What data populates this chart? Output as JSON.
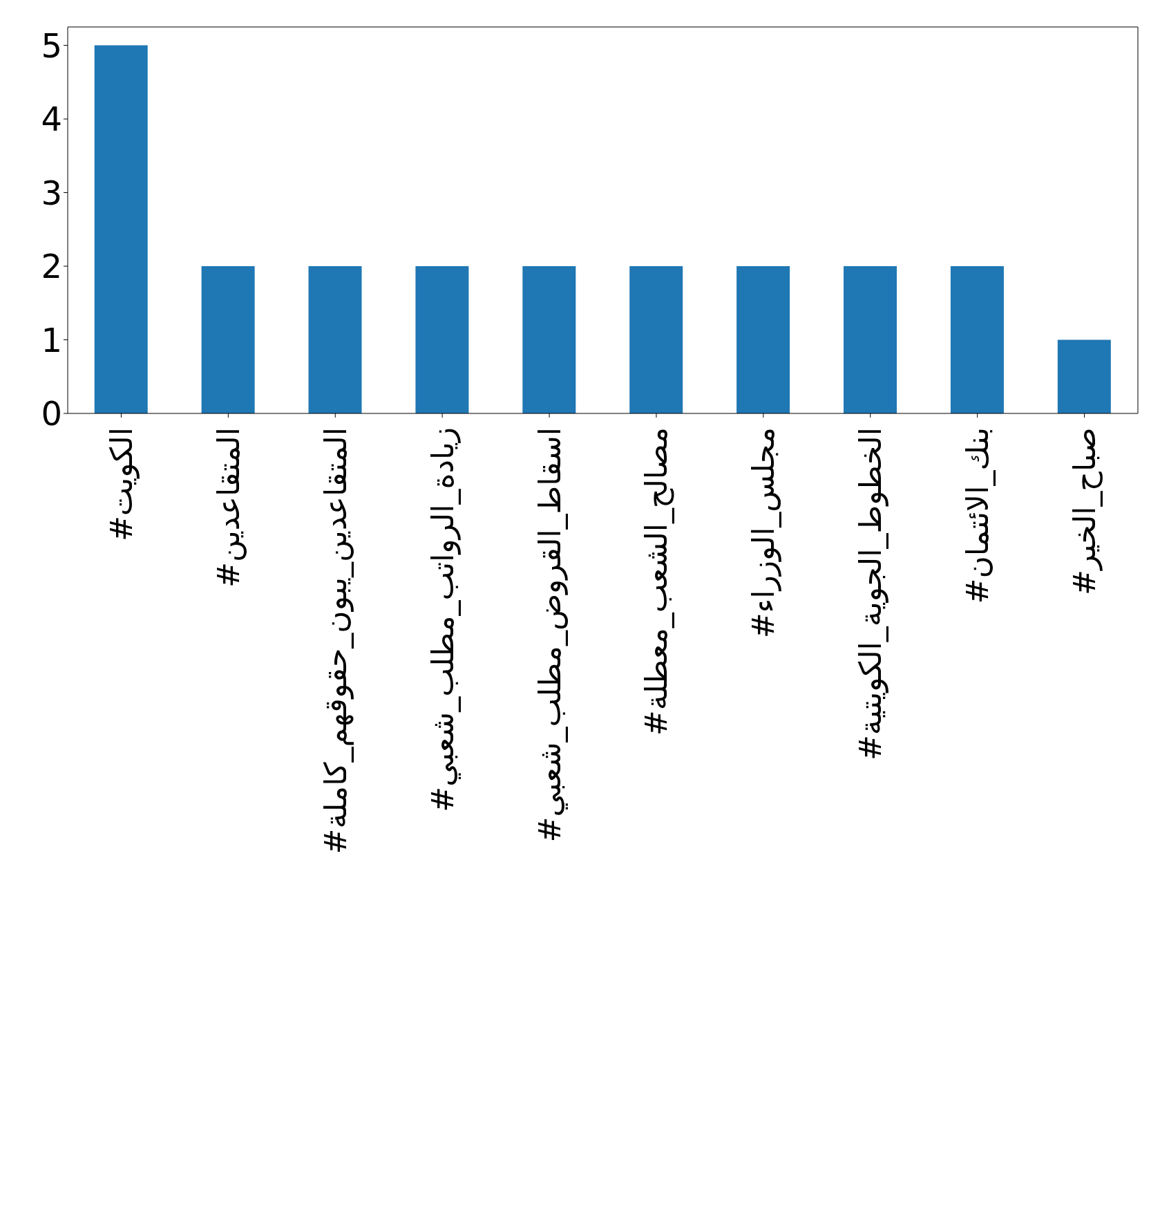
{
  "chart_data": {
    "type": "bar",
    "categories": [
      "#الكويت",
      "#المتقاعدين",
      "#المتقاعدين_يبون_حقوقهم_كاملة",
      "#زيادة_الرواتب_مطلب_شعبي",
      "#اسقاط_القروض_مطلب_شعبي",
      "#مصالح_الشعب_معطلة",
      "#مجلس_الوزراء",
      "#الخطوط_الجوية_الكويتية",
      "#بنك_الائتمان",
      "#صباح_الخير"
    ],
    "values": [
      5,
      2,
      2,
      2,
      2,
      2,
      2,
      2,
      2,
      1
    ],
    "color": "#1f77b4",
    "ylim": [
      0,
      5.25
    ],
    "yticks": [
      0,
      1,
      2,
      3,
      4,
      5
    ],
    "grid": false,
    "legend": false
  }
}
